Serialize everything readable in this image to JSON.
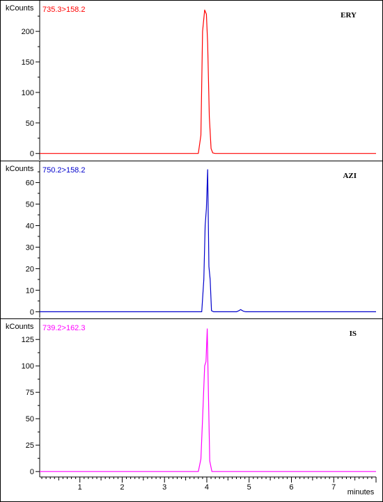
{
  "x_axis": {
    "label": "minutes",
    "min": 0.05,
    "max": 8.0,
    "ticks": [
      1,
      2,
      3,
      4,
      5,
      6,
      7
    ],
    "minor_step": 0.1
  },
  "chart_data": [
    {
      "type": "line",
      "unit_label": "kCounts",
      "transition": "735.3>158.2",
      "compound": "ERY",
      "color": "#ff0000",
      "ylim": [
        -6,
        240
      ],
      "y_ticks": [
        0,
        50,
        100,
        150,
        200
      ],
      "series": [
        {
          "x": [
            0.05,
            3.8,
            3.86,
            3.9,
            3.95,
            3.99,
            4.02,
            4.06,
            4.1,
            4.14,
            4.2,
            8.0
          ],
          "y": [
            0,
            0,
            30,
            200,
            235,
            228,
            180,
            60,
            8,
            1,
            0,
            0
          ]
        }
      ]
    },
    {
      "type": "line",
      "unit_label": "kCounts",
      "transition": "750.2>158.2",
      "compound": "AZI",
      "color": "#0000cc",
      "ylim": [
        -1.5,
        66
      ],
      "y_ticks": [
        0,
        10,
        20,
        30,
        40,
        50,
        60
      ],
      "series": [
        {
          "x": [
            0.05,
            3.88,
            3.93,
            3.96,
            3.99,
            4.02,
            4.05,
            4.08,
            4.11,
            4.16,
            4.7,
            4.76,
            4.8,
            4.86,
            4.92,
            8.0
          ],
          "y": [
            0,
            0,
            15,
            40,
            48,
            66,
            21,
            15,
            0.5,
            0,
            0,
            0.5,
            1,
            0.3,
            0,
            0
          ]
        }
      ]
    },
    {
      "type": "line",
      "unit_label": "kCounts",
      "transition": "739.2>162.3",
      "compound": "IS",
      "color": "#ff00ff",
      "ylim": [
        -2.5,
        137
      ],
      "y_ticks": [
        0,
        25,
        50,
        75,
        100,
        125
      ],
      "series": [
        {
          "x": [
            0.05,
            3.8,
            3.86,
            3.9,
            3.95,
            3.98,
            4.01,
            4.04,
            4.07,
            4.12,
            8.0
          ],
          "y": [
            0,
            0,
            12,
            50,
            100,
            104,
            135,
            70,
            10,
            0,
            0
          ]
        }
      ]
    }
  ]
}
